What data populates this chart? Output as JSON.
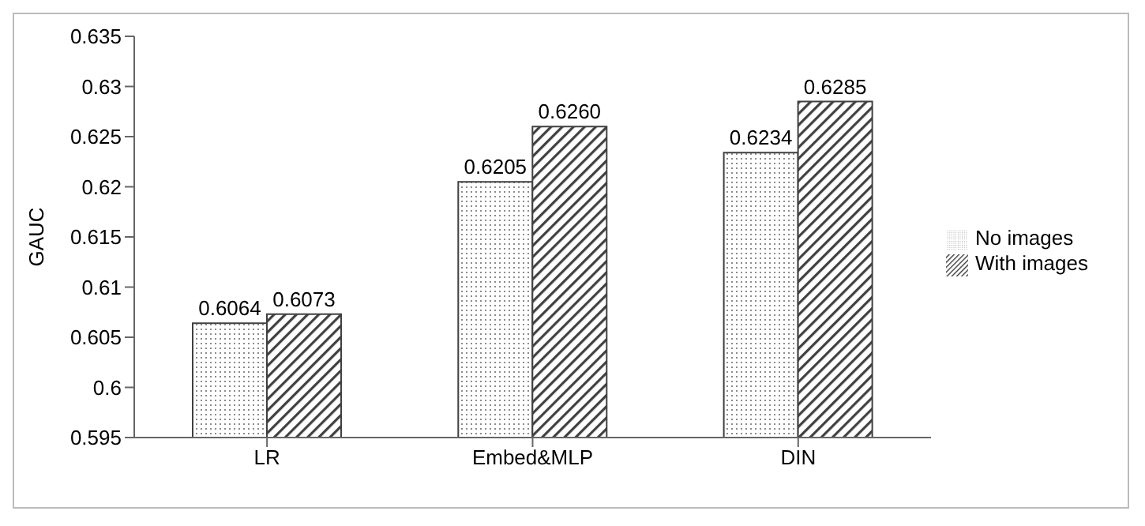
{
  "chart_data": {
    "type": "bar",
    "ylabel": "GAUC",
    "categories": [
      "LR",
      "Embed&MLP",
      "DIN"
    ],
    "series": [
      {
        "name": "No images",
        "color": "#404040",
        "values": [
          0.6064,
          0.6205,
          0.6234
        ],
        "value_labels": [
          "0.6064",
          "0.6205",
          "0.6234"
        ]
      },
      {
        "name": "With images",
        "color": "#404040",
        "values": [
          0.6073,
          0.626,
          0.6285
        ],
        "value_labels": [
          "0.6073",
          "0.6260",
          "0.6285"
        ]
      }
    ],
    "ylim": [
      0.595,
      0.635
    ],
    "yticks": [
      0.595,
      0.6,
      0.605,
      0.61,
      0.615,
      0.62,
      0.625,
      0.63,
      0.635
    ],
    "legend": "right"
  }
}
